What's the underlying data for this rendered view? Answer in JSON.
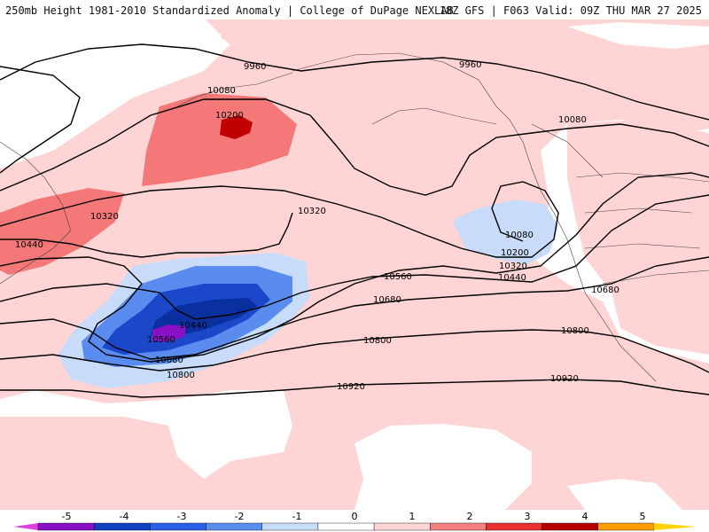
{
  "header": {
    "title_left": "250mb Height 1981-2010 Standardized Anomaly | College of DuPage NEXLAB",
    "title_right": "18Z GFS | F063 Valid: 09Z THU MAR 27 2025"
  },
  "map": {
    "contour_labels": [
      "9960",
      "9960",
      "10080",
      "10080",
      "10200",
      "10320",
      "10320",
      "10440",
      "10080",
      "10200",
      "10320",
      "10440",
      "10560",
      "10680",
      "10680",
      "10440",
      "10560",
      "10680",
      "10800",
      "10800",
      "10800",
      "10920",
      "10920"
    ]
  },
  "colorbar": {
    "tick_labels": [
      "-5",
      "-4",
      "-3",
      "-2",
      "-1",
      "0",
      "1",
      "2",
      "3",
      "4",
      "5"
    ],
    "colors": [
      "#e040e0",
      "#8a10c8",
      "#1040c0",
      "#2860e8",
      "#5a8cf0",
      "#c8dcfa",
      "#ffffff",
      "#ffd4d4",
      "#f48080",
      "#e83030",
      "#b40000",
      "#ff9e00",
      "#ffd400"
    ]
  }
}
